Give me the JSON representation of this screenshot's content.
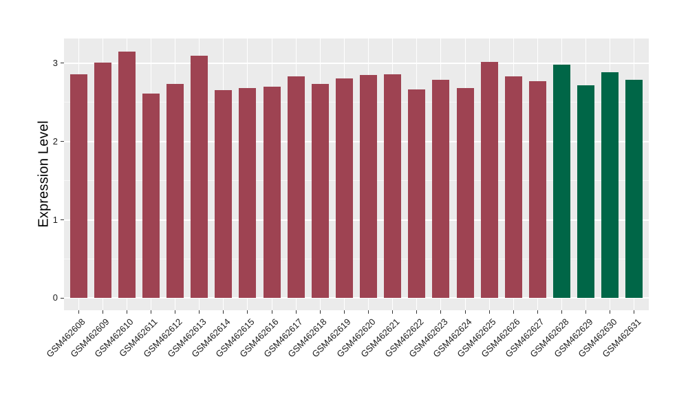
{
  "chart_data": {
    "type": "bar",
    "title": "",
    "xlabel": "",
    "ylabel": "Expression Level",
    "ylim": [
      0,
      3.32
    ],
    "yticks": [
      0,
      1,
      2,
      3
    ],
    "yminor": [
      0.5,
      1.5,
      2.5
    ],
    "grid": true,
    "legend": false,
    "x_tick_rotation": 45,
    "panel_background": "#EBEBEB",
    "major_grid_color": "#FFFFFF",
    "minor_grid_color": "rgba(255,255,255,0.6)",
    "bar_color_main": "#9E4352",
    "bar_color_highlight": "#006647",
    "categories": [
      "GSM462608",
      "GSM462609",
      "GSM462610",
      "GSM462611",
      "GSM462612",
      "GSM462613",
      "GSM462614",
      "GSM462615",
      "GSM462616",
      "GSM462617",
      "GSM462618",
      "GSM462619",
      "GSM462620",
      "GSM462621",
      "GSM462622",
      "GSM462623",
      "GSM462624",
      "GSM462625",
      "GSM462626",
      "GSM462627",
      "GSM462628",
      "GSM462629",
      "GSM462630",
      "GSM462631"
    ],
    "values": [
      2.86,
      3.01,
      3.15,
      2.61,
      2.74,
      3.1,
      2.66,
      2.68,
      2.7,
      2.83,
      2.74,
      2.81,
      2.85,
      2.86,
      2.67,
      2.79,
      2.68,
      3.02,
      2.83,
      2.77,
      2.98,
      2.72,
      2.89,
      2.79
    ],
    "bar_colors": [
      "#9E4352",
      "#9E4352",
      "#9E4352",
      "#9E4352",
      "#9E4352",
      "#9E4352",
      "#9E4352",
      "#9E4352",
      "#9E4352",
      "#9E4352",
      "#9E4352",
      "#9E4352",
      "#9E4352",
      "#9E4352",
      "#9E4352",
      "#9E4352",
      "#9E4352",
      "#9E4352",
      "#9E4352",
      "#9E4352",
      "#006647",
      "#006647",
      "#006647",
      "#006647"
    ]
  }
}
